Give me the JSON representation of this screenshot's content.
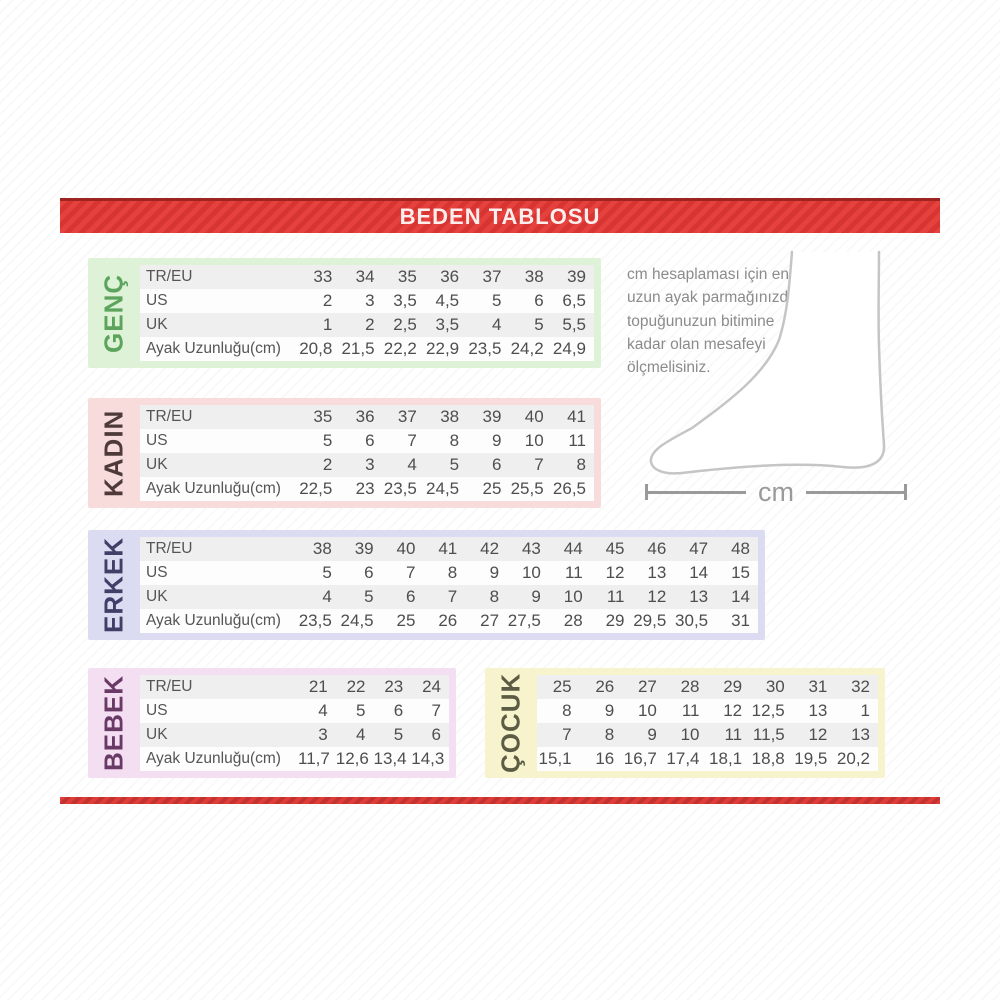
{
  "header": {
    "title": "BEDEN TABLOSU"
  },
  "row_headers": [
    "TR/EU",
    "US",
    "UK",
    "Ayak Uzunluğu(cm)"
  ],
  "instruction": "cm hesaplaması için en\nuzun ayak parmağınızdan\ntopuğunuzun bitimine\nkadar olan mesafeyi\nölçmelisiniz.",
  "measure": {
    "unit": "cm"
  },
  "colors": {
    "banner_red": "#e6413d",
    "banner_stripe": "#d63532",
    "banner_border": "#9d2420",
    "row_alt_gray": "#efefef",
    "foot_outline_gray": "#c5c5c5",
    "measure_gray": "#9a9a9a"
  },
  "tables": [
    {
      "id": "genc",
      "label": "GENÇ",
      "frame_color": "#ddf2d7",
      "label_color": "#5ca45c",
      "show_row_headers": true,
      "rows": [
        [
          "33",
          "34",
          "35",
          "36",
          "37",
          "38",
          "39"
        ],
        [
          "2",
          "3",
          "3,5",
          "4,5",
          "5",
          "6",
          "6,5"
        ],
        [
          "1",
          "2",
          "2,5",
          "3,5",
          "4",
          "5",
          "5,5"
        ],
        [
          "20,8",
          "21,5",
          "22,2",
          "22,9",
          "23,5",
          "24,2",
          "24,9"
        ]
      ]
    },
    {
      "id": "kadin",
      "label": "KADIN",
      "frame_color": "#f8dcdc",
      "label_color": "#4f3a3a",
      "show_row_headers": true,
      "rows": [
        [
          "35",
          "36",
          "37",
          "38",
          "39",
          "40",
          "41"
        ],
        [
          "5",
          "6",
          "7",
          "8",
          "9",
          "10",
          "11"
        ],
        [
          "2",
          "3",
          "4",
          "5",
          "6",
          "7",
          "8"
        ],
        [
          "22,5",
          "23",
          "23,5",
          "24,5",
          "25",
          "25,5",
          "26,5"
        ]
      ]
    },
    {
      "id": "erkek",
      "label": "ERKEK",
      "frame_color": "#dbdbf1",
      "label_color": "#3f3f68",
      "show_row_headers": true,
      "rows": [
        [
          "38",
          "39",
          "40",
          "41",
          "42",
          "43",
          "44",
          "45",
          "46",
          "47",
          "48"
        ],
        [
          "5",
          "6",
          "7",
          "8",
          "9",
          "10",
          "11",
          "12",
          "13",
          "14",
          "15"
        ],
        [
          "4",
          "5",
          "6",
          "7",
          "8",
          "9",
          "10",
          "11",
          "12",
          "13",
          "14"
        ],
        [
          "23,5",
          "24,5",
          "25",
          "26",
          "27",
          "27,5",
          "28",
          "29",
          "29,5",
          "30,5",
          "31"
        ]
      ]
    },
    {
      "id": "bebek",
      "label": "BEBEK",
      "frame_color": "#f4def2",
      "label_color": "#693a66",
      "show_row_headers": true,
      "rows": [
        [
          "21",
          "22",
          "23",
          "24"
        ],
        [
          "4",
          "5",
          "6",
          "7"
        ],
        [
          "3",
          "4",
          "5",
          "6"
        ],
        [
          "11,7",
          "12,6",
          "13,4",
          "14,3"
        ]
      ]
    },
    {
      "id": "cocuk",
      "label": "ÇOCUK",
      "frame_color": "#f7f3cd",
      "label_color": "#5c5c45",
      "show_row_headers": false,
      "rows": [
        [
          "25",
          "26",
          "27",
          "28",
          "29",
          "30",
          "31",
          "32"
        ],
        [
          "8",
          "9",
          "10",
          "11",
          "12",
          "12,5",
          "13",
          "1"
        ],
        [
          "7",
          "8",
          "9",
          "10",
          "11",
          "11,5",
          "12",
          "13"
        ],
        [
          "15,1",
          "16",
          "16,7",
          "17,4",
          "18,1",
          "18,8",
          "19,5",
          "20,2"
        ]
      ]
    }
  ]
}
